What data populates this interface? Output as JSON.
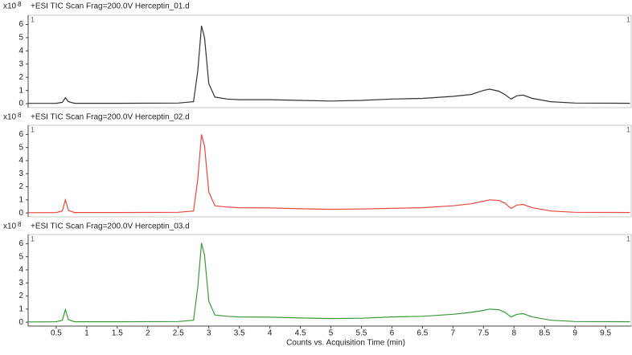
{
  "chart_data": [
    {
      "type": "line",
      "title": "+ESI TIC Scan Frag=200.0V Herceptin_01.d",
      "y_scale_label": "x10",
      "y_scale_exponent": "8",
      "left_marker": "1",
      "right_marker": "1",
      "color": "#333333",
      "x": [
        0.04,
        0.5,
        0.6,
        0.65,
        0.7,
        0.8,
        1.5,
        2.5,
        2.75,
        2.82,
        2.88,
        2.93,
        3.0,
        3.1,
        3.3,
        3.5,
        4,
        4.5,
        5,
        5.5,
        6,
        6.5,
        7,
        7.3,
        7.5,
        7.6,
        7.75,
        7.85,
        7.95,
        8.05,
        8.15,
        8.3,
        8.6,
        9,
        9.9
      ],
      "values": [
        0.02,
        0.03,
        0.1,
        0.45,
        0.15,
        0.03,
        0.03,
        0.05,
        0.15,
        2.5,
        5.9,
        5.0,
        1.5,
        0.5,
        0.35,
        0.3,
        0.3,
        0.25,
        0.2,
        0.25,
        0.35,
        0.4,
        0.55,
        0.7,
        1.0,
        1.1,
        0.95,
        0.7,
        0.35,
        0.6,
        0.65,
        0.4,
        0.15,
        0.05,
        0.03
      ],
      "xlim": [
        0.04,
        9.92
      ],
      "ylim": [
        -0.3,
        6.7
      ],
      "yticks": [
        0,
        1,
        2,
        3,
        4,
        5,
        6
      ]
    },
    {
      "type": "line",
      "title": "+ESI TIC Scan Frag=200.0V Herceptin_02.d",
      "y_scale_label": "x10",
      "y_scale_exponent": "8",
      "left_marker": "1",
      "right_marker": "1",
      "color": "#e8483f",
      "x": [
        0.04,
        0.5,
        0.6,
        0.65,
        0.7,
        0.8,
        1.5,
        2.5,
        2.75,
        2.82,
        2.88,
        2.93,
        3.0,
        3.1,
        3.3,
        3.5,
        4,
        4.5,
        5,
        5.5,
        6,
        6.5,
        7,
        7.3,
        7.5,
        7.6,
        7.75,
        7.85,
        7.95,
        8.05,
        8.15,
        8.3,
        8.6,
        9,
        9.9
      ],
      "values": [
        0.02,
        0.03,
        0.15,
        1.0,
        0.2,
        0.03,
        0.03,
        0.05,
        0.15,
        2.6,
        6.0,
        5.1,
        1.6,
        0.55,
        0.45,
        0.4,
        0.38,
        0.32,
        0.28,
        0.3,
        0.35,
        0.4,
        0.55,
        0.7,
        0.9,
        1.0,
        0.95,
        0.75,
        0.35,
        0.6,
        0.65,
        0.4,
        0.15,
        0.05,
        0.03
      ],
      "xlim": [
        0.04,
        9.92
      ],
      "ylim": [
        -0.3,
        6.7
      ],
      "yticks": [
        0,
        1,
        2,
        3,
        4,
        5,
        6
      ]
    },
    {
      "type": "line",
      "title": "+ESI TIC Scan Frag=200.0V Herceptin_03.d",
      "y_scale_label": "x10",
      "y_scale_exponent": "8",
      "left_marker": "1",
      "right_marker": "1",
      "color": "#3a9a3a",
      "x": [
        0.04,
        0.5,
        0.6,
        0.65,
        0.7,
        0.8,
        1.5,
        2.5,
        2.75,
        2.82,
        2.88,
        2.93,
        3.0,
        3.1,
        3.3,
        3.5,
        4,
        4.5,
        5,
        5.5,
        6,
        6.5,
        7,
        7.3,
        7.5,
        7.6,
        7.75,
        7.85,
        7.95,
        8.05,
        8.15,
        8.3,
        8.6,
        9,
        9.9
      ],
      "values": [
        0.02,
        0.03,
        0.15,
        0.95,
        0.2,
        0.03,
        0.03,
        0.05,
        0.15,
        2.7,
        6.05,
        5.1,
        1.6,
        0.55,
        0.45,
        0.4,
        0.38,
        0.32,
        0.28,
        0.3,
        0.4,
        0.45,
        0.6,
        0.75,
        0.9,
        1.0,
        0.95,
        0.75,
        0.4,
        0.6,
        0.65,
        0.4,
        0.15,
        0.05,
        0.03
      ],
      "xlim": [
        0.04,
        9.92
      ],
      "ylim": [
        -0.3,
        6.7
      ],
      "yticks": [
        0,
        1,
        2,
        3,
        4,
        5,
        6
      ],
      "xticks": [
        0.5,
        1,
        1.5,
        2,
        2.5,
        3,
        3.5,
        4,
        4.5,
        5,
        5.5,
        6,
        6.5,
        7,
        7.5,
        8,
        8.5,
        9,
        9.5
      ],
      "xlabel": "Counts vs. Acquisition Time (min)"
    }
  ]
}
